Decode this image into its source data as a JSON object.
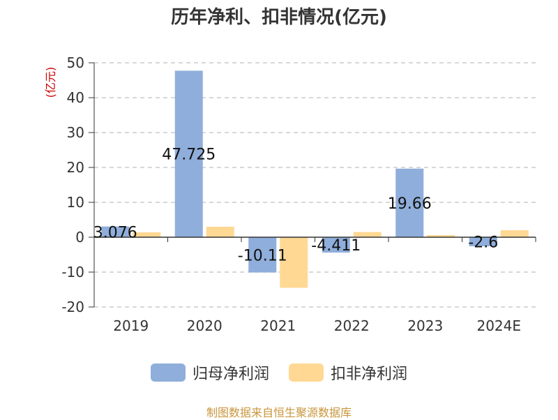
{
  "title": "历年净利、扣非情况(亿元)",
  "source": "制图数据来自恒生聚源数据库",
  "colors": {
    "series1": "#8FAEDB",
    "series2": "#FFD894",
    "unit": "#cc0000",
    "source": "#c8963c"
  },
  "chart_data": {
    "type": "bar",
    "title": "历年净利、扣非情况(亿元)",
    "ylabel": "(亿元)",
    "xlabel": "",
    "categories": [
      "2019",
      "2020",
      "2021",
      "2022",
      "2023",
      "2024E"
    ],
    "ylim": [
      -20,
      50
    ],
    "yticks": [
      "50",
      "40",
      "30",
      "20",
      "10",
      "0",
      "-10",
      "-20"
    ],
    "grid": true,
    "legend_position": "bottom",
    "series": [
      {
        "name": "归母净利润",
        "values": [
          3.076,
          47.725,
          -10.11,
          -4.411,
          19.66,
          -2.6
        ],
        "labels": [
          "3.076",
          "47.725",
          "-10.11",
          "-4.411",
          "19.66",
          "-2.6"
        ]
      },
      {
        "name": "扣非净利润",
        "values": [
          1.4,
          3.0,
          -14.5,
          1.5,
          0.6,
          2.0
        ]
      }
    ]
  }
}
